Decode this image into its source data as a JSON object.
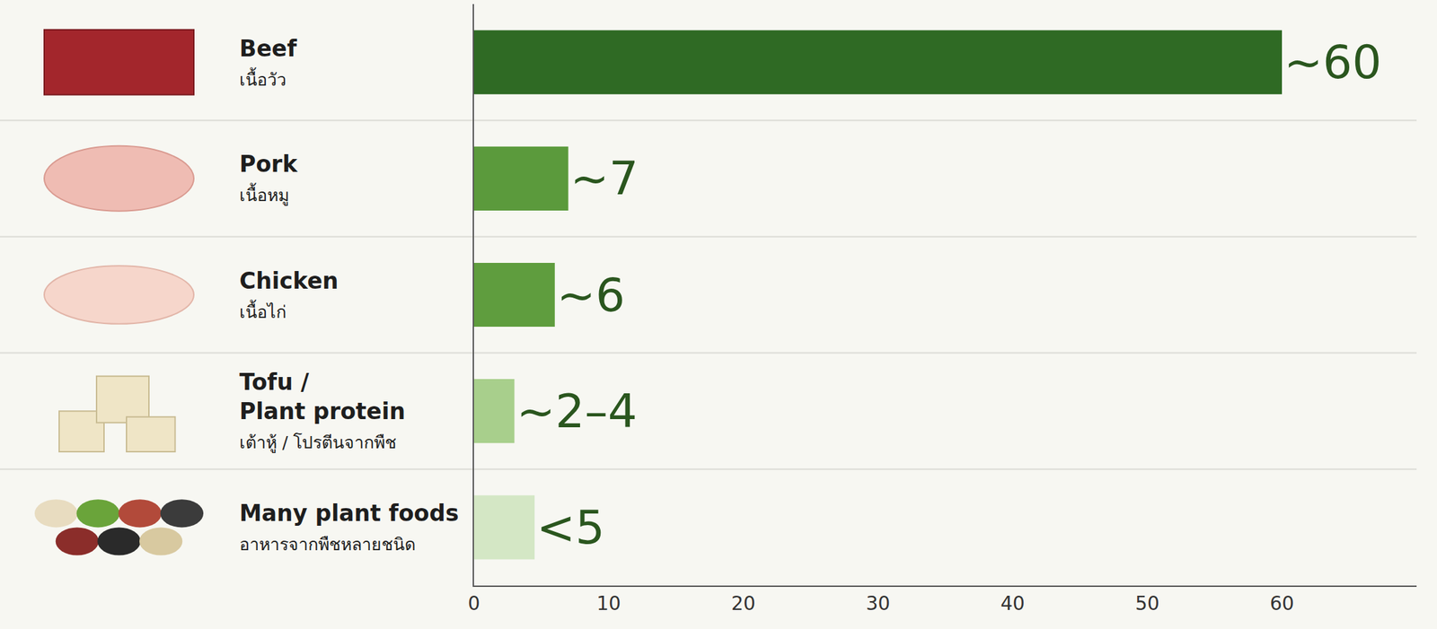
{
  "chart_data": {
    "type": "bar",
    "orientation": "horizontal",
    "categories": [
      "Beef\nเนื้อวัว",
      "Pork\nเนื้อหมู",
      "Chicken\nเนื้อไก่",
      "Tofu /\nPlant protein\nเต้าหู้ / โปรตีนจากพืช",
      "Many plant foods\nอาหารจากพืชหลายชนิด"
    ],
    "values": [
      60,
      7,
      6,
      3,
      4.5
    ],
    "value_labels": [
      "~60",
      "~7",
      "~6",
      "~2–4",
      "<5"
    ],
    "colors": [
      "#2f6a24",
      "#5b9a3c",
      "#5f9d3e",
      "#a8cf8c",
      "#d4e7c5"
    ],
    "xlim": [
      0,
      70
    ],
    "xticks": [
      0,
      10,
      20,
      30,
      40,
      50,
      60
    ],
    "grid": false,
    "data_labels": true,
    "tick_labels": "x"
  }
}
